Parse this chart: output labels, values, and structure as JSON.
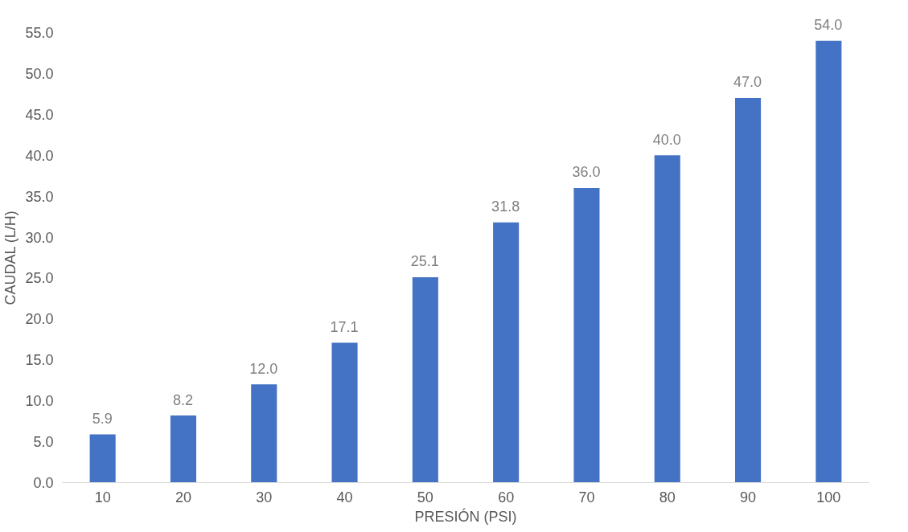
{
  "chart_data": {
    "type": "bar",
    "xlabel": "PRESIÓN (PSI)",
    "ylabel": "CAUDAL (L/H)",
    "categories": [
      "10",
      "20",
      "30",
      "40",
      "50",
      "60",
      "70",
      "80",
      "90",
      "100"
    ],
    "values": [
      5.9,
      8.2,
      12.0,
      17.1,
      25.1,
      31.8,
      36.0,
      40.0,
      47.0,
      54.0
    ],
    "value_labels": [
      "5.9",
      "8.2",
      "12.0",
      "17.1",
      "25.1",
      "31.8",
      "36.0",
      "40.0",
      "47.0",
      "54.0"
    ],
    "color": "#4472c4",
    "ylim": [
      0,
      55
    ],
    "yticks": [
      {
        "value": 0,
        "label": "0.0"
      },
      {
        "value": 5,
        "label": "5.0"
      },
      {
        "value": 10,
        "label": "10.0"
      },
      {
        "value": 15,
        "label": "15.0"
      },
      {
        "value": 20,
        "label": "20.0"
      },
      {
        "value": 25,
        "label": "25.0"
      },
      {
        "value": 30,
        "label": "30.0"
      },
      {
        "value": 35,
        "label": "35.0"
      },
      {
        "value": 40,
        "label": "40.0"
      },
      {
        "value": 45,
        "label": "45.0"
      },
      {
        "value": 50,
        "label": "50.0"
      },
      {
        "value": 55,
        "label": "55.0"
      }
    ],
    "grid": false
  }
}
